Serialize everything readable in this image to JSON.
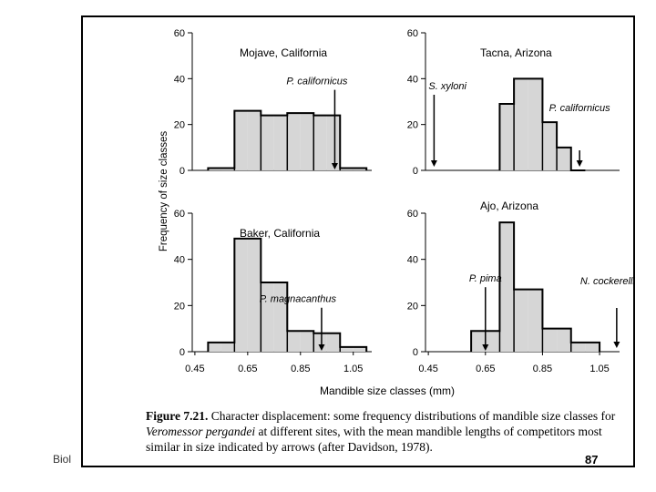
{
  "slide": {
    "footer_left": "Biol",
    "page_number": "87"
  },
  "caption": {
    "figure_label": "Figure 7.21.",
    "text_1": " Character displacement: some frequency distributions of mandible size classes for ",
    "species": "Veromessor pergandei",
    "text_2": " at different sites, with the mean mandible lengths of competitors most similar in size indicated by arrows (after Davidson, 1978)."
  },
  "chart_data": {
    "type": "bar",
    "ylabel": "Frequency of size classes",
    "xlabel": "Mandible size classes (mm)",
    "x_ticks": [
      "0.45",
      "0.65",
      "0.85",
      "1.05"
    ],
    "y_ticks": [
      "0",
      "20",
      "40",
      "60"
    ],
    "bin_edges": [
      0.5,
      0.55,
      0.6,
      0.65,
      0.7,
      0.75,
      0.8,
      0.85,
      0.9,
      0.95,
      1.0,
      1.05,
      1.1
    ],
    "panels": [
      {
        "site": "Mojave, California",
        "bins": [
          {
            "x0": 0.5,
            "x1": 0.55,
            "y": 1
          },
          {
            "x0": 0.55,
            "x1": 0.6,
            "y": 1
          },
          {
            "x0": 0.6,
            "x1": 0.65,
            "y": 26
          },
          {
            "x0": 0.65,
            "x1": 0.7,
            "y": 26
          },
          {
            "x0": 0.7,
            "x1": 0.75,
            "y": 24
          },
          {
            "x0": 0.75,
            "x1": 0.8,
            "y": 24
          },
          {
            "x0": 0.8,
            "x1": 0.85,
            "y": 25
          },
          {
            "x0": 0.85,
            "x1": 0.9,
            "y": 25
          },
          {
            "x0": 0.9,
            "x1": 0.95,
            "y": 24
          },
          {
            "x0": 0.95,
            "x1": 1.0,
            "y": 24
          },
          {
            "x0": 1.0,
            "x1": 1.05,
            "y": 1
          },
          {
            "x0": 1.05,
            "x1": 1.1,
            "y": 1
          }
        ],
        "arrows": [
          {
            "label": "P. californicus",
            "x": 0.98,
            "label_side": "left"
          }
        ]
      },
      {
        "site": "Tacna, Arizona",
        "bins": [
          {
            "x0": 0.7,
            "x1": 0.75,
            "y": 29
          },
          {
            "x0": 0.75,
            "x1": 0.8,
            "y": 40
          },
          {
            "x0": 0.8,
            "x1": 0.85,
            "y": 40
          },
          {
            "x0": 0.85,
            "x1": 0.9,
            "y": 21
          },
          {
            "x0": 0.9,
            "x1": 0.95,
            "y": 10
          },
          {
            "x0": 0.95,
            "x1": 1.0,
            "y": 0
          }
        ],
        "arrows": [
          {
            "label": "S. xyloni",
            "x": 0.47,
            "label_side": "right"
          },
          {
            "label": "P. californicus",
            "x": 0.98,
            "label_side": "center"
          }
        ]
      },
      {
        "site": "Baker, California",
        "bins": [
          {
            "x0": 0.5,
            "x1": 0.55,
            "y": 4
          },
          {
            "x0": 0.55,
            "x1": 0.6,
            "y": 4
          },
          {
            "x0": 0.6,
            "x1": 0.65,
            "y": 49
          },
          {
            "x0": 0.65,
            "x1": 0.7,
            "y": 49
          },
          {
            "x0": 0.7,
            "x1": 0.75,
            "y": 30
          },
          {
            "x0": 0.75,
            "x1": 0.8,
            "y": 30
          },
          {
            "x0": 0.8,
            "x1": 0.85,
            "y": 9
          },
          {
            "x0": 0.85,
            "x1": 0.9,
            "y": 9
          },
          {
            "x0": 0.9,
            "x1": 0.95,
            "y": 8
          },
          {
            "x0": 0.95,
            "x1": 1.0,
            "y": 8
          },
          {
            "x0": 1.0,
            "x1": 1.05,
            "y": 2
          },
          {
            "x0": 1.05,
            "x1": 1.1,
            "y": 2
          }
        ],
        "arrows": [
          {
            "label": "P. magnacanthus",
            "x": 0.93,
            "label_side": "left"
          }
        ]
      },
      {
        "site": "Ajo, Arizona",
        "bins": [
          {
            "x0": 0.6,
            "x1": 0.65,
            "y": 9
          },
          {
            "x0": 0.65,
            "x1": 0.7,
            "y": 9
          },
          {
            "x0": 0.7,
            "x1": 0.75,
            "y": 56
          },
          {
            "x0": 0.75,
            "x1": 0.8,
            "y": 27
          },
          {
            "x0": 0.8,
            "x1": 0.85,
            "y": 27
          },
          {
            "x0": 0.85,
            "x1": 0.9,
            "y": 10
          },
          {
            "x0": 0.9,
            "x1": 0.95,
            "y": 10
          },
          {
            "x0": 0.95,
            "x1": 1.0,
            "y": 4
          },
          {
            "x0": 1.0,
            "x1": 1.05,
            "y": 4
          }
        ],
        "arrows": [
          {
            "label": "P. pima",
            "x": 0.65,
            "label_side": "center"
          },
          {
            "label": "N. cockerelli",
            "x": 1.11,
            "label_side": "center"
          }
        ]
      }
    ],
    "xlim": [
      0.44,
      1.12
    ],
    "ylim": [
      0,
      60
    ],
    "fill": "#d6d6d6",
    "stroke": "#000000",
    "grid": false
  }
}
